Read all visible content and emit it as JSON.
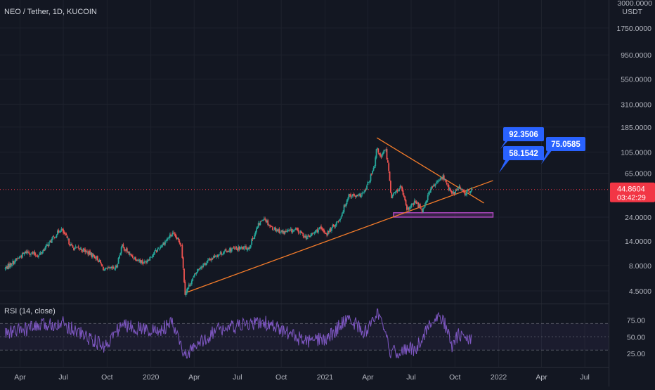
{
  "header": {
    "symbol_title": "NEO / Tether, 1D, KUCOIN"
  },
  "price_axis": {
    "unit": "USDT",
    "top_partial_label": "3000.0000",
    "labels": [
      "1750.0000",
      "950.0000",
      "550.0000",
      "310.0000",
      "185.0000",
      "105.0000",
      "65.0000",
      "24.0000",
      "14.0000",
      "8.0000",
      "4.5000"
    ]
  },
  "last_price": {
    "value": "44.8604",
    "countdown": "03:42:29",
    "color": "#f23645"
  },
  "rsi_panel": {
    "title": "RSI (14, close)",
    "labels": [
      "75.00",
      "50.00",
      "25.00"
    ],
    "line_color": "#7e57c2"
  },
  "time_axis": {
    "labels": [
      "Apr",
      "Jul",
      "Oct",
      "2020",
      "Apr",
      "Jul",
      "Oct",
      "2021",
      "Apr",
      "Jul",
      "Oct",
      "2022",
      "Apr",
      "Jul"
    ]
  },
  "annotations": {
    "callout_1": "92.3506",
    "callout_2": "58.1542",
    "callout_3": "75.0585",
    "callout_color": "#2962ff"
  },
  "colors": {
    "background": "#131722",
    "up_candle": "#26a69a",
    "down_candle": "#ef5350",
    "trendline": "#f57c2a",
    "support_zone": "#ab47bc"
  },
  "chart_data": {
    "type": "candlestick",
    "title": "NEO / Tether, 1D, KUCOIN",
    "y_scale": "log",
    "ylim": [
      3.6,
      3000
    ],
    "x_range": [
      "2019-02-25",
      "2022-08-01"
    ],
    "close_path": [
      [
        "2019-03-01",
        7.5
      ],
      [
        "2019-04-15",
        11
      ],
      [
        "2019-05-10",
        10
      ],
      [
        "2019-06-05",
        14
      ],
      [
        "2019-06-26",
        18.5
      ],
      [
        "2019-07-20",
        12
      ],
      [
        "2019-08-10",
        11.5
      ],
      [
        "2019-09-10",
        9.5
      ],
      [
        "2019-09-25",
        7.2
      ],
      [
        "2019-10-20",
        7.6
      ],
      [
        "2019-11-01",
        12.5
      ],
      [
        "2019-11-20",
        10
      ],
      [
        "2019-12-18",
        8.5
      ],
      [
        "2020-01-15",
        11.5
      ],
      [
        "2020-02-15",
        16.5
      ],
      [
        "2020-03-05",
        13
      ],
      [
        "2020-03-13",
        4.3
      ],
      [
        "2020-04-10",
        7.5
      ],
      [
        "2020-05-15",
        10
      ],
      [
        "2020-06-15",
        11.5
      ],
      [
        "2020-07-25",
        12
      ],
      [
        "2020-08-14",
        20
      ],
      [
        "2020-08-25",
        24
      ],
      [
        "2020-09-10",
        19
      ],
      [
        "2020-10-05",
        17
      ],
      [
        "2020-11-01",
        18
      ],
      [
        "2020-11-25",
        15
      ],
      [
        "2020-12-20",
        18.5
      ],
      [
        "2021-01-05",
        16.5
      ],
      [
        "2021-02-01",
        23
      ],
      [
        "2021-02-20",
        40
      ],
      [
        "2021-03-10",
        38
      ],
      [
        "2021-03-25",
        42
      ],
      [
        "2021-04-15",
        75
      ],
      [
        "2021-04-20",
        118
      ],
      [
        "2021-04-28",
        90
      ],
      [
        "2021-05-08",
        115
      ],
      [
        "2021-05-15",
        70
      ],
      [
        "2021-05-20",
        38
      ],
      [
        "2021-06-10",
        48
      ],
      [
        "2021-06-22",
        28
      ],
      [
        "2021-07-10",
        34
      ],
      [
        "2021-07-25",
        28
      ],
      [
        "2021-08-10",
        45
      ],
      [
        "2021-09-06",
        60
      ],
      [
        "2021-09-25",
        40
      ],
      [
        "2021-10-10",
        47
      ],
      [
        "2021-10-20",
        41
      ],
      [
        "2021-11-05",
        44.86
      ]
    ],
    "rsi_path": [
      [
        "2019-03-01",
        55
      ],
      [
        "2019-06-26",
        72
      ],
      [
        "2019-09-25",
        35
      ],
      [
        "2019-11-01",
        68
      ],
      [
        "2020-01-15",
        58
      ],
      [
        "2020-02-15",
        70
      ],
      [
        "2020-03-13",
        20
      ],
      [
        "2020-05-15",
        60
      ],
      [
        "2020-08-25",
        72
      ],
      [
        "2020-11-25",
        42
      ],
      [
        "2021-01-05",
        47
      ],
      [
        "2021-02-20",
        80
      ],
      [
        "2021-03-25",
        55
      ],
      [
        "2021-04-20",
        88
      ],
      [
        "2021-05-20",
        25
      ],
      [
        "2021-06-22",
        32
      ],
      [
        "2021-07-10",
        30
      ],
      [
        "2021-08-10",
        72
      ],
      [
        "2021-09-06",
        78
      ],
      [
        "2021-09-25",
        35
      ],
      [
        "2021-10-10",
        55
      ],
      [
        "2021-10-20",
        45
      ],
      [
        "2021-11-05",
        48
      ]
    ],
    "trendlines": [
      {
        "name": "ascending-support",
        "from": [
          "2020-03-13",
          4.3
        ],
        "to": [
          "2021-12-20",
          55
        ]
      },
      {
        "name": "descending-resistance",
        "from": [
          "2021-04-20",
          145
        ],
        "to": [
          "2021-12-01",
          33
        ]
      }
    ],
    "zones": [
      {
        "name": "support-zone",
        "from": [
          "2021-05-25",
          24
        ],
        "to": [
          "2021-12-20",
          26.5
        ]
      }
    ]
  }
}
